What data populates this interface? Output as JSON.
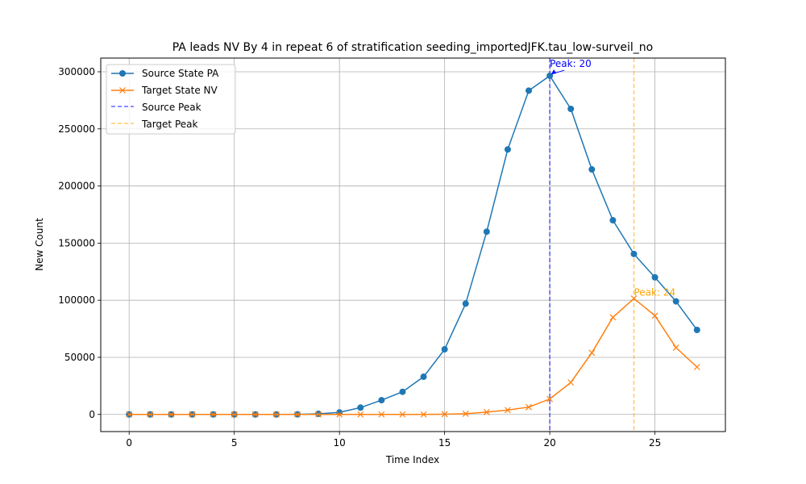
{
  "chart_data": {
    "type": "line",
    "title": "PA leads NV By 4 in repeat 6 of stratification seeding_importedJFK.tau_low-surveil_no",
    "xlabel": "Time Index",
    "ylabel": "New Count",
    "xlim": [
      -1.35,
      28.35
    ],
    "ylim": [
      -15000,
      312000
    ],
    "xticks": [
      0,
      5,
      10,
      15,
      20,
      25
    ],
    "yticks": [
      0,
      50000,
      100000,
      150000,
      200000,
      250000,
      300000
    ],
    "grid": true,
    "legend_position": "top-left",
    "x": [
      0,
      1,
      2,
      3,
      4,
      5,
      6,
      7,
      8,
      9,
      10,
      11,
      12,
      13,
      14,
      15,
      16,
      17,
      18,
      19,
      20,
      21,
      22,
      23,
      24,
      25,
      26,
      27
    ],
    "series": [
      {
        "name": "Source State PA",
        "color": "#1f77b4",
        "marker": "circle",
        "values": [
          0,
          0,
          0,
          0,
          0,
          0,
          0,
          0,
          100,
          500,
          1800,
          6000,
          12500,
          19800,
          33000,
          57000,
          97000,
          160000,
          232000,
          283500,
          296500,
          267500,
          214500,
          170000,
          140500,
          120000,
          99000,
          74000
        ]
      },
      {
        "name": "Target State NV",
        "color": "#ff7f0e",
        "marker": "x",
        "values": [
          0,
          0,
          0,
          0,
          0,
          0,
          0,
          0,
          0,
          0,
          0,
          0,
          0,
          0,
          0,
          200,
          600,
          2000,
          3800,
          6400,
          13500,
          28000,
          54000,
          85000,
          101500,
          86500,
          58500,
          41500
        ]
      }
    ],
    "peak_lines": [
      {
        "name": "Source Peak",
        "x": 20,
        "color": "#0000ff",
        "annotation": "Peak: 20",
        "annotation_y": 307000
      },
      {
        "name": "Target Peak",
        "x": 24,
        "color": "#ffa500",
        "annotation": "Peak: 24",
        "annotation_y": 104000
      }
    ]
  }
}
